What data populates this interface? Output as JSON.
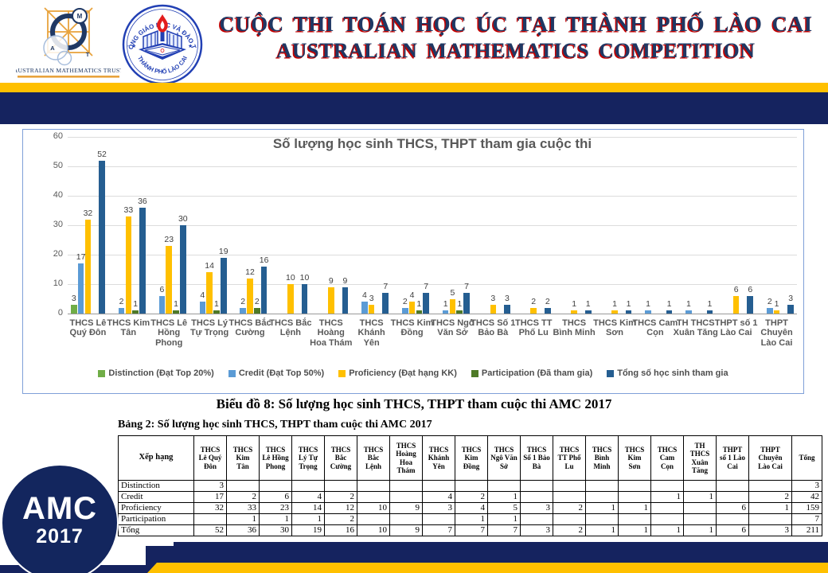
{
  "header": {
    "title_line1": "CUỘC THI TOÁN HỌC ÚC TẠI THÀNH PHỐ LÀO CAI",
    "title_line2": "AUSTRALIAN MATHEMATICS COMPETITION",
    "amt_logo_text": "AUSTRALIAN MATHEMATICS TRUST",
    "amt_letters": [
      "M",
      "A",
      "T"
    ],
    "badge_top_text": "PHÒNG GIÁO DỤC VÀ ĐÀO TẠO",
    "badge_bottom_text": "THÀNH PHỐ LÀO CAI"
  },
  "chart_data": {
    "type": "bar",
    "title": "Số lượng học sinh THCS, THPT tham gia cuộc thi",
    "xlabel": "",
    "ylabel": "",
    "ylim": [
      0,
      60
    ],
    "yticks": [
      0,
      10,
      20,
      30,
      40,
      50,
      60
    ],
    "grid": true,
    "legend_position": "bottom",
    "categories": [
      "THCS Lê Quý Đôn",
      "THCS Kim Tân",
      "THCS Lê Hồng Phong",
      "THCS Lý Tự Trọng",
      "THCS Bắc Cường",
      "THCS Bắc Lệnh",
      "THCS Hoàng Hoa Thám",
      "THCS Khánh Yên",
      "THCS Kim Đồng",
      "THCS Ngô Văn Sở",
      "THCS Số 1 Bảo Bà",
      "THCS TT Phố Lu",
      "THCS Bình Minh",
      "THCS Kim Sơn",
      "THCS Cam Cọn",
      "TH THCS Xuân Tăng",
      "THPT số 1 Lào Cai",
      "THPT Chuyên Lào Cai"
    ],
    "series": [
      {
        "name": "Distinction (Đạt Top 20%)",
        "color": "#70AD47",
        "values": [
          3,
          0,
          0,
          0,
          0,
          0,
          0,
          0,
          0,
          0,
          0,
          0,
          0,
          0,
          0,
          0,
          0,
          0
        ]
      },
      {
        "name": "Credit (Đạt Top 50%)",
        "color": "#5B9BD5",
        "values": [
          17,
          2,
          6,
          4,
          2,
          0,
          0,
          4,
          2,
          1,
          0,
          0,
          0,
          0,
          1,
          1,
          0,
          2
        ]
      },
      {
        "name": "Proficiency (Đạt hạng KK)",
        "color": "#FFC000",
        "values": [
          32,
          33,
          23,
          14,
          12,
          10,
          9,
          3,
          4,
          5,
          3,
          2,
          1,
          1,
          0,
          0,
          6,
          1
        ]
      },
      {
        "name": "Participation (Đã tham gia)",
        "color": "#4E7A27",
        "values": [
          0,
          1,
          1,
          1,
          2,
          0,
          0,
          0,
          1,
          1,
          0,
          0,
          0,
          0,
          0,
          0,
          0,
          0
        ]
      },
      {
        "name": "Tổng số học sinh tham gia",
        "color": "#255E91",
        "values": [
          52,
          36,
          30,
          19,
          16,
          10,
          9,
          7,
          7,
          7,
          3,
          2,
          1,
          1,
          1,
          1,
          6,
          3
        ]
      }
    ]
  },
  "chart_caption": "Biểu đồ 8: Số lượng học sinh THCS, THPT tham cuộc thi AMC 2017",
  "table": {
    "caption": "Bảng 2: Số lượng học sinh THCS, THPT tham cuộc thi AMC 2017",
    "row_header": "Xếp hạng",
    "total_label": "Tổng",
    "columns": [
      "THCS Lê Quý Đôn",
      "THCS Kim Tân",
      "THCS Lê Hồng Phong",
      "THCS Lý Tự Trọng",
      "THCS Bắc Cường",
      "THCS Bắc Lệnh",
      "THCS Hoàng Hoa Thám",
      "THCS Khánh Yên",
      "THCS Kim Đồng",
      "THCS Ngô Văn Sở",
      "THCS Số 1 Bảo Bà",
      "THCS TT Phố Lu",
      "THCS Bình Minh",
      "THCS Kim Sơn",
      "THCS Cam Cọn",
      "TH THCS Xuân Tăng",
      "THPT số 1 Lào Cai",
      "THPT Chuyên Lào Cai"
    ],
    "rows": [
      {
        "label": "Distinction",
        "values": [
          "3",
          "",
          "",
          "",
          "",
          "",
          "",
          "",
          "",
          "",
          "",
          "",
          "",
          "",
          "",
          "",
          "",
          ""
        ],
        "total": "3"
      },
      {
        "label": "Credit",
        "values": [
          "17",
          "2",
          "6",
          "4",
          "2",
          "",
          "",
          "4",
          "2",
          "1",
          "",
          "",
          "",
          "",
          "1",
          "1",
          "",
          "2"
        ],
        "total": "42"
      },
      {
        "label": "Proficiency",
        "values": [
          "32",
          "33",
          "23",
          "14",
          "12",
          "10",
          "9",
          "3",
          "4",
          "5",
          "3",
          "2",
          "1",
          "1",
          "",
          "",
          "6",
          "1"
        ],
        "total": "159"
      },
      {
        "label": "Participation",
        "values": [
          "",
          "1",
          "1",
          "1",
          "2",
          "",
          "",
          "",
          "1",
          "1",
          "",
          "",
          "",
          "",
          "",
          "",
          "",
          ""
        ],
        "total": "7"
      },
      {
        "label": "Tổng",
        "values": [
          "52",
          "36",
          "30",
          "19",
          "16",
          "10",
          "9",
          "7",
          "7",
          "7",
          "3",
          "2",
          "1",
          "1",
          "1",
          "1",
          "6",
          "3"
        ],
        "total": "211"
      }
    ]
  },
  "badge": {
    "line1": "AMC",
    "line2": "2017"
  },
  "colors": {
    "navy": "#15235F",
    "gold": "#FFC000",
    "title_navy": "#1F3864",
    "title_shadow_red": "#C00000",
    "chart_border": "#7FA0D8",
    "distinction_green": "#70AD47",
    "credit_blue": "#5B9BD5",
    "proficiency_gold": "#FFC000",
    "participation_green": "#4E7A27",
    "total_blue": "#255E91"
  }
}
